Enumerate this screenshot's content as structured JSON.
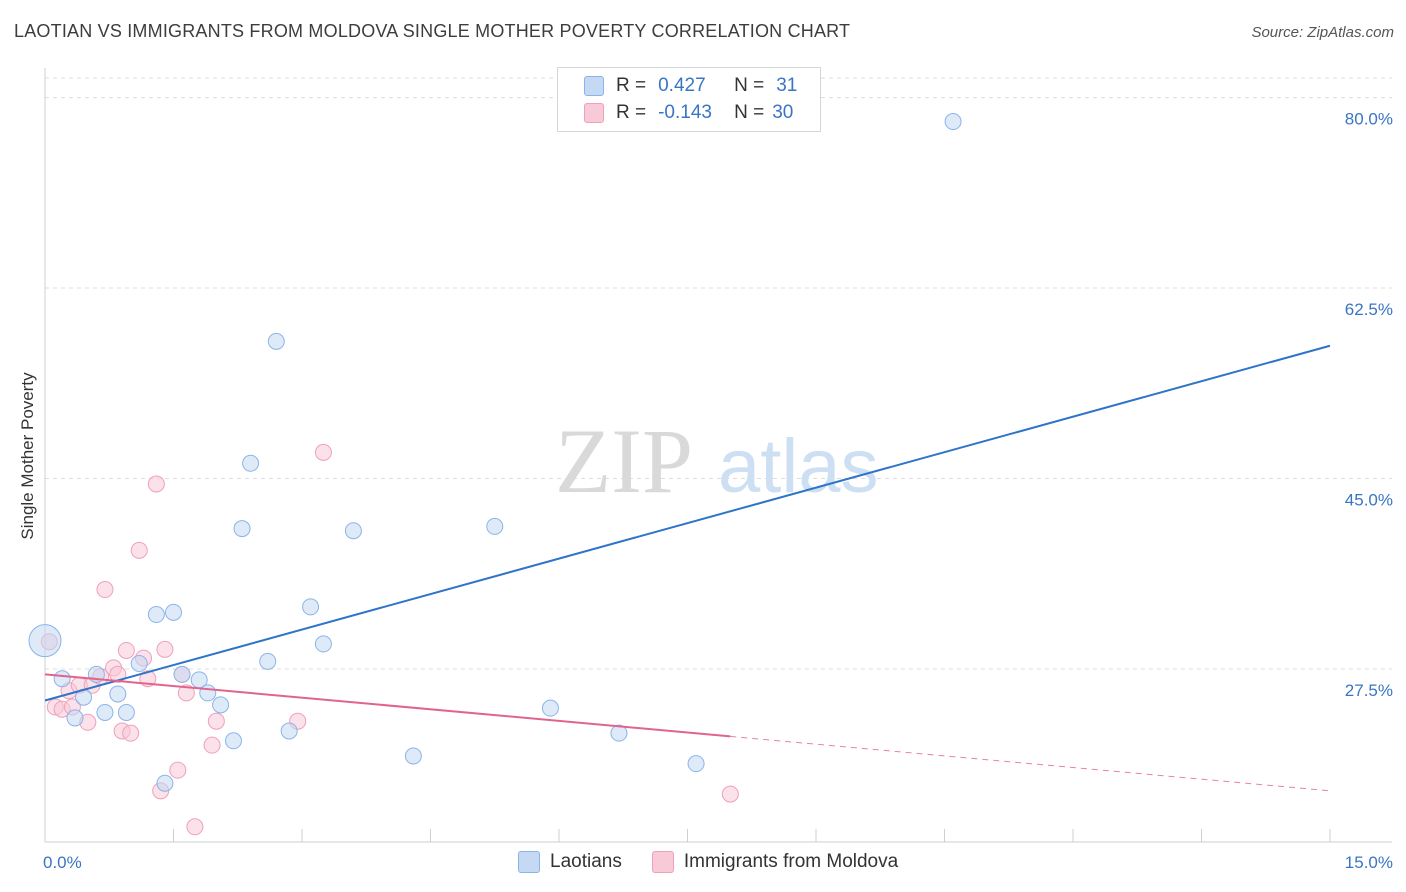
{
  "title": "LAOTIAN VS IMMIGRANTS FROM MOLDOVA SINGLE MOTHER POVERTY CORRELATION CHART",
  "source": "Source: ZipAtlas.com",
  "watermark": {
    "zip": "ZIP",
    "atlas": "atlas"
  },
  "legend": {
    "r_label": "R =",
    "n_label": "N =",
    "series1": {
      "r": "0.427",
      "n": "31"
    },
    "series2": {
      "r": "-0.143",
      "n": "30"
    }
  },
  "chart_data": {
    "type": "scatter",
    "title": "LAOTIAN VS IMMIGRANTS FROM MOLDOVA SINGLE MOTHER POVERTY CORRELATION CHART",
    "xlabel": "",
    "ylabel": "Single Mother Poverty",
    "xlim": [
      0,
      15
    ],
    "ylim": [
      11.6,
      81.8
    ],
    "x_tick_labels": [
      "0.0%",
      "15.0%"
    ],
    "y_ticks": [
      27.5,
      45.0,
      62.5,
      80.0
    ],
    "y_tick_labels": [
      "27.5%",
      "45.0%",
      "62.5%",
      "80.0%"
    ],
    "grid": true,
    "series": [
      {
        "name": "Laotians",
        "color": "#8ab4e8",
        "fill": "#c5d9f4",
        "line_color": "#2e74c9",
        "r": 0.427,
        "n": 31,
        "points": [
          {
            "x": 0.0,
            "y": 30.1,
            "big": true
          },
          {
            "x": 0.2,
            "y": 26.6
          },
          {
            "x": 0.35,
            "y": 23.0
          },
          {
            "x": 0.45,
            "y": 24.9
          },
          {
            "x": 0.6,
            "y": 27.0
          },
          {
            "x": 0.7,
            "y": 23.5
          },
          {
            "x": 0.85,
            "y": 25.2
          },
          {
            "x": 0.95,
            "y": 23.5
          },
          {
            "x": 1.1,
            "y": 28.0
          },
          {
            "x": 1.3,
            "y": 32.5
          },
          {
            "x": 1.4,
            "y": 17.0
          },
          {
            "x": 1.5,
            "y": 32.7
          },
          {
            "x": 1.6,
            "y": 27.0
          },
          {
            "x": 1.8,
            "y": 26.5
          },
          {
            "x": 1.9,
            "y": 25.3
          },
          {
            "x": 2.05,
            "y": 24.2
          },
          {
            "x": 2.2,
            "y": 20.9
          },
          {
            "x": 2.3,
            "y": 40.4
          },
          {
            "x": 2.4,
            "y": 46.4
          },
          {
            "x": 2.6,
            "y": 28.2
          },
          {
            "x": 2.7,
            "y": 57.6
          },
          {
            "x": 2.85,
            "y": 21.8
          },
          {
            "x": 3.1,
            "y": 33.2
          },
          {
            "x": 3.25,
            "y": 29.8
          },
          {
            "x": 3.6,
            "y": 40.2
          },
          {
            "x": 4.3,
            "y": 19.5
          },
          {
            "x": 5.25,
            "y": 40.6
          },
          {
            "x": 5.9,
            "y": 23.9
          },
          {
            "x": 6.7,
            "y": 21.6
          },
          {
            "x": 7.6,
            "y": 18.8
          },
          {
            "x": 10.6,
            "y": 77.8
          }
        ],
        "trend": {
          "x": [
            0.0,
            15.0
          ],
          "y": [
            24.6,
            57.2
          ]
        }
      },
      {
        "name": "Immigrants from Moldova",
        "color": "#f0a0b8",
        "fill": "#f8c9d7",
        "line_color": "#e0648e",
        "r": -0.143,
        "n": 30,
        "points": [
          {
            "x": 0.05,
            "y": 30.0
          },
          {
            "x": 0.12,
            "y": 24.0
          },
          {
            "x": 0.2,
            "y": 23.8
          },
          {
            "x": 0.28,
            "y": 25.5
          },
          {
            "x": 0.32,
            "y": 24.0
          },
          {
            "x": 0.4,
            "y": 26.0
          },
          {
            "x": 0.5,
            "y": 22.6
          },
          {
            "x": 0.55,
            "y": 26.0
          },
          {
            "x": 0.65,
            "y": 26.8
          },
          {
            "x": 0.7,
            "y": 34.8
          },
          {
            "x": 0.8,
            "y": 27.6
          },
          {
            "x": 0.85,
            "y": 27.0
          },
          {
            "x": 0.9,
            "y": 21.8
          },
          {
            "x": 0.95,
            "y": 29.2
          },
          {
            "x": 1.0,
            "y": 21.6
          },
          {
            "x": 1.1,
            "y": 38.4
          },
          {
            "x": 1.15,
            "y": 28.5
          },
          {
            "x": 1.2,
            "y": 26.6
          },
          {
            "x": 1.3,
            "y": 44.5
          },
          {
            "x": 1.35,
            "y": 16.3
          },
          {
            "x": 1.4,
            "y": 29.3
          },
          {
            "x": 1.55,
            "y": 18.2
          },
          {
            "x": 1.6,
            "y": 27.0
          },
          {
            "x": 1.65,
            "y": 25.3
          },
          {
            "x": 1.75,
            "y": 13.0
          },
          {
            "x": 1.95,
            "y": 20.5
          },
          {
            "x": 2.0,
            "y": 22.7
          },
          {
            "x": 2.95,
            "y": 22.7
          },
          {
            "x": 3.25,
            "y": 47.4
          },
          {
            "x": 8.0,
            "y": 16.0
          }
        ],
        "trend": {
          "x": [
            0.0,
            8.0
          ],
          "y": [
            27.0,
            21.3
          ]
        },
        "trend_dashed": {
          "x": [
            8.0,
            15.0
          ],
          "y": [
            21.3,
            16.3
          ]
        }
      }
    ]
  }
}
